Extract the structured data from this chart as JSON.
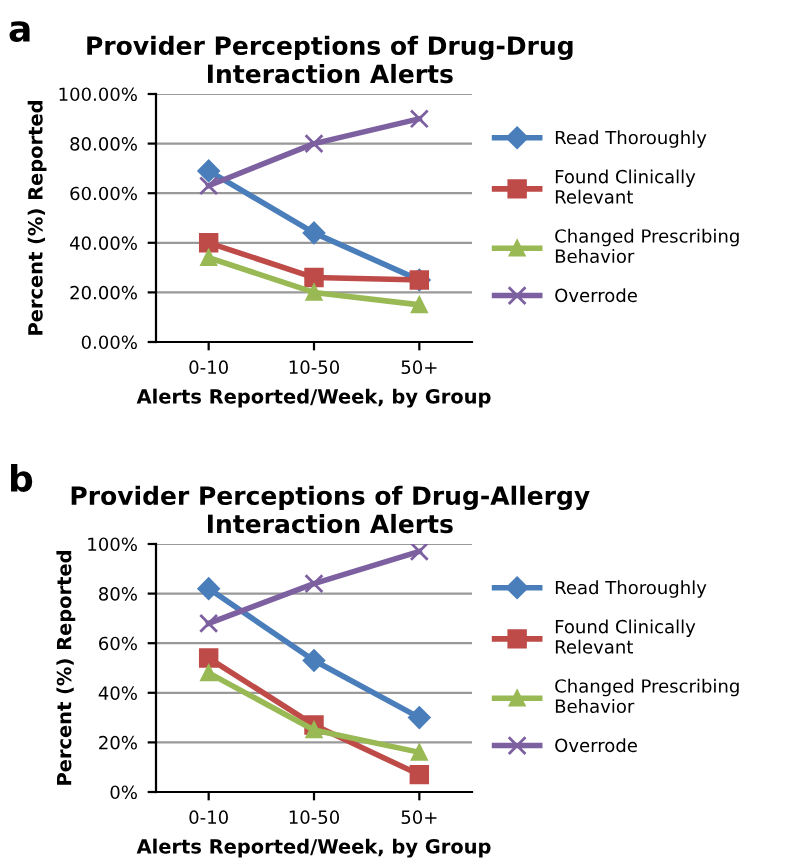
{
  "chart_data": [
    {
      "type": "line",
      "title": "Provider Perceptions of Drug-Drug\nInteraction Alerts",
      "xlabel": "Alerts Reported/Week, by Group",
      "ylabel": "Percent (%) Reported",
      "annotations": [
        "a"
      ],
      "categories": [
        "0-10",
        "10-50",
        "50+"
      ],
      "series": [
        {
          "name": "Read Thoroughly",
          "color": "#4a7ebb",
          "marker": "diamond",
          "values": [
            69,
            44,
            25
          ]
        },
        {
          "name": "Found Clinically Relevant",
          "color": "#be4b48",
          "marker": "square",
          "values": [
            40,
            26,
            25
          ]
        },
        {
          "name": "Changed Prescribing Behavior",
          "color": "#98b954",
          "marker": "triangle",
          "values": [
            34,
            20,
            15
          ]
        },
        {
          "name": "Overrode",
          "color": "#7d60a0",
          "marker": "cross",
          "values": [
            63,
            80,
            90
          ]
        }
      ],
      "ylim": [
        0,
        100
      ],
      "yticks": [
        {
          "value": 0,
          "label": "0.00%"
        },
        {
          "value": 20,
          "label": "20.00%"
        },
        {
          "value": 40,
          "label": "40.00%"
        },
        {
          "value": 60,
          "label": "60.00%"
        },
        {
          "value": 80,
          "label": "80.00%"
        },
        {
          "value": 100,
          "label": "100.00%"
        }
      ],
      "grid": "y",
      "legend": "right",
      "line_style": "solid"
    },
    {
      "type": "line",
      "title": "Provider Perceptions of Drug-Allergy\nInteraction Alerts",
      "xlabel": "Alerts Reported/Week, by Group",
      "ylabel": "Percent (%) Reported",
      "annotations": [
        "b"
      ],
      "categories": [
        "0-10",
        "10-50",
        "50+"
      ],
      "series": [
        {
          "name": "Read Thoroughly",
          "color": "#4a7ebb",
          "marker": "diamond",
          "values": [
            82,
            53,
            30
          ]
        },
        {
          "name": "Found Clinically Relevant",
          "color": "#be4b48",
          "marker": "square",
          "values": [
            54,
            27,
            7
          ]
        },
        {
          "name": "Changed Prescribing Behavior",
          "color": "#98b954",
          "marker": "triangle",
          "values": [
            48,
            25,
            16
          ]
        },
        {
          "name": "Overrode",
          "color": "#7d60a0",
          "marker": "cross",
          "values": [
            68,
            84,
            97
          ]
        }
      ],
      "ylim": [
        0,
        100
      ],
      "yticks": [
        {
          "value": 0,
          "label": "0%"
        },
        {
          "value": 20,
          "label": "20%"
        },
        {
          "value": 40,
          "label": "40%"
        },
        {
          "value": 60,
          "label": "60%"
        },
        {
          "value": 80,
          "label": "80%"
        },
        {
          "value": 100,
          "label": "100%"
        }
      ],
      "grid": "y",
      "legend": "right",
      "line_style": "solid"
    }
  ]
}
